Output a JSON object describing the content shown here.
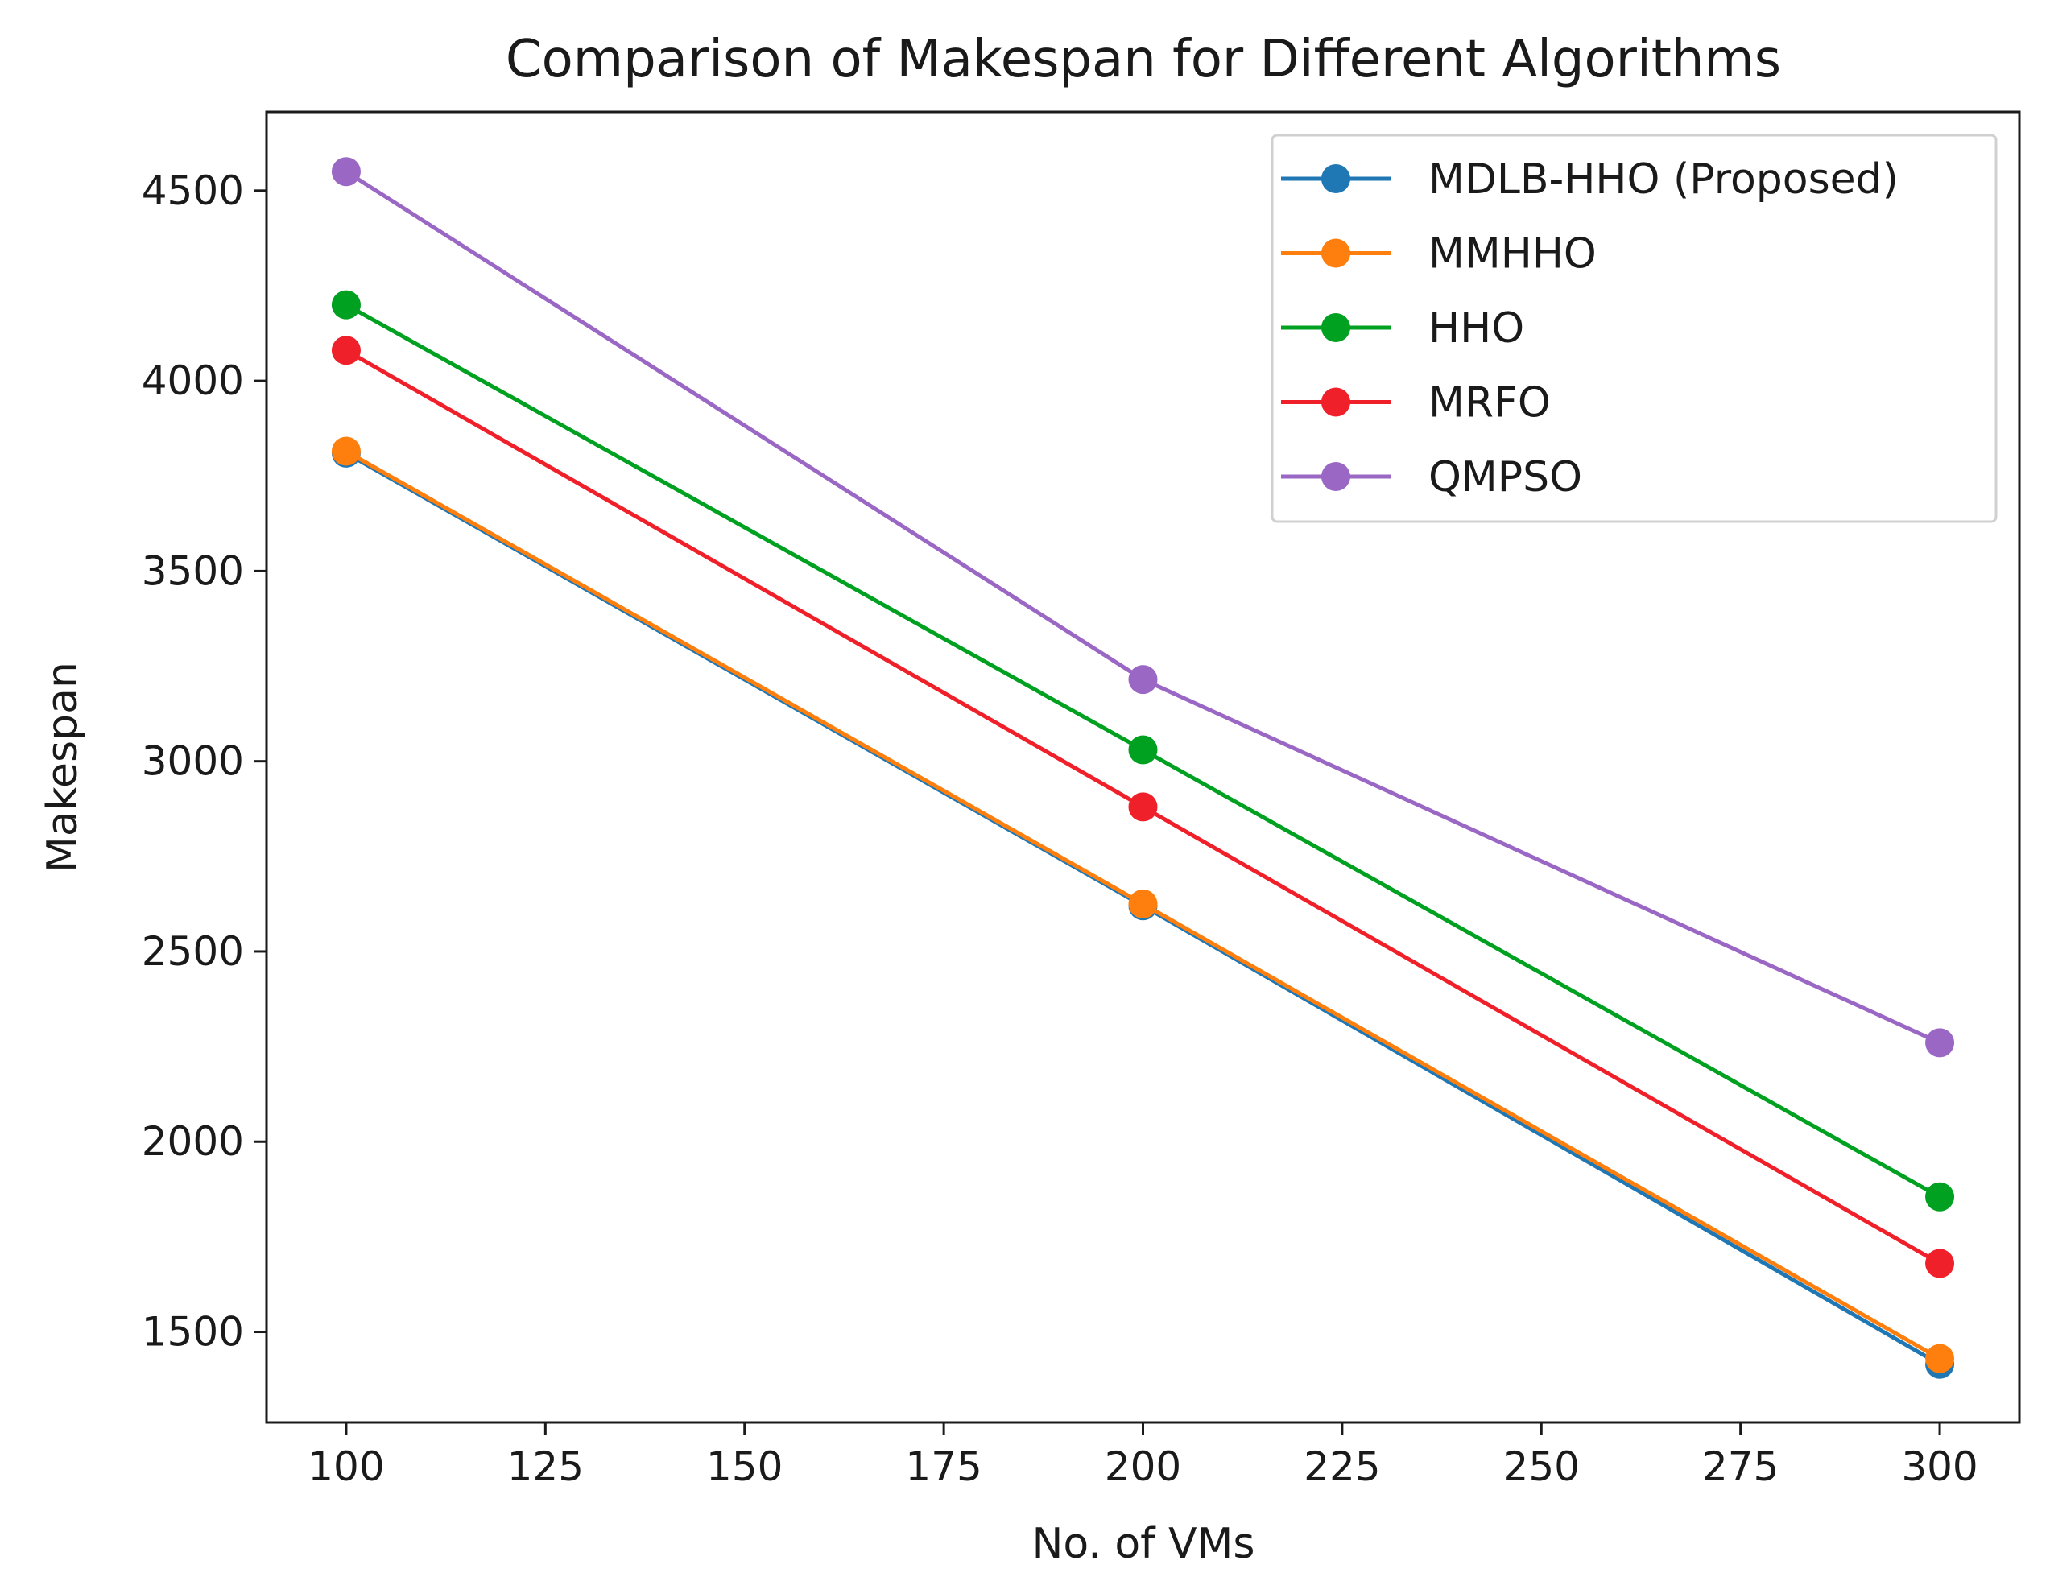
{
  "chart_data": {
    "type": "line",
    "title": "Comparison of Makespan for Different Algorithms",
    "xlabel": "No. of VMs",
    "ylabel": "Makespan",
    "x": [
      100,
      200,
      300
    ],
    "xlim": [
      90,
      310
    ],
    "ylim": [
      1262,
      4707
    ],
    "xticks": [
      100,
      125,
      150,
      175,
      200,
      225,
      250,
      275,
      300
    ],
    "yticks": [
      1500,
      2000,
      2500,
      3000,
      3500,
      4000,
      4500
    ],
    "grid": false,
    "legend_position": "top-right",
    "series": [
      {
        "name": "MDLB-HHO (Proposed)",
        "color": "#1f77b4",
        "values": [
          3810,
          2620,
          1415
        ]
      },
      {
        "name": "MMHHO",
        "color": "#ff7f0e",
        "values": [
          3815,
          2625,
          1430
        ]
      },
      {
        "name": "HHO",
        "color": "#00a020",
        "values": [
          4200,
          3030,
          1855
        ]
      },
      {
        "name": "MRFO",
        "color": "#f0202a",
        "values": [
          4080,
          2880,
          1680
        ]
      },
      {
        "name": "QMPSO",
        "color": "#9a68c4",
        "values": [
          4550,
          3215,
          2260
        ]
      }
    ]
  }
}
